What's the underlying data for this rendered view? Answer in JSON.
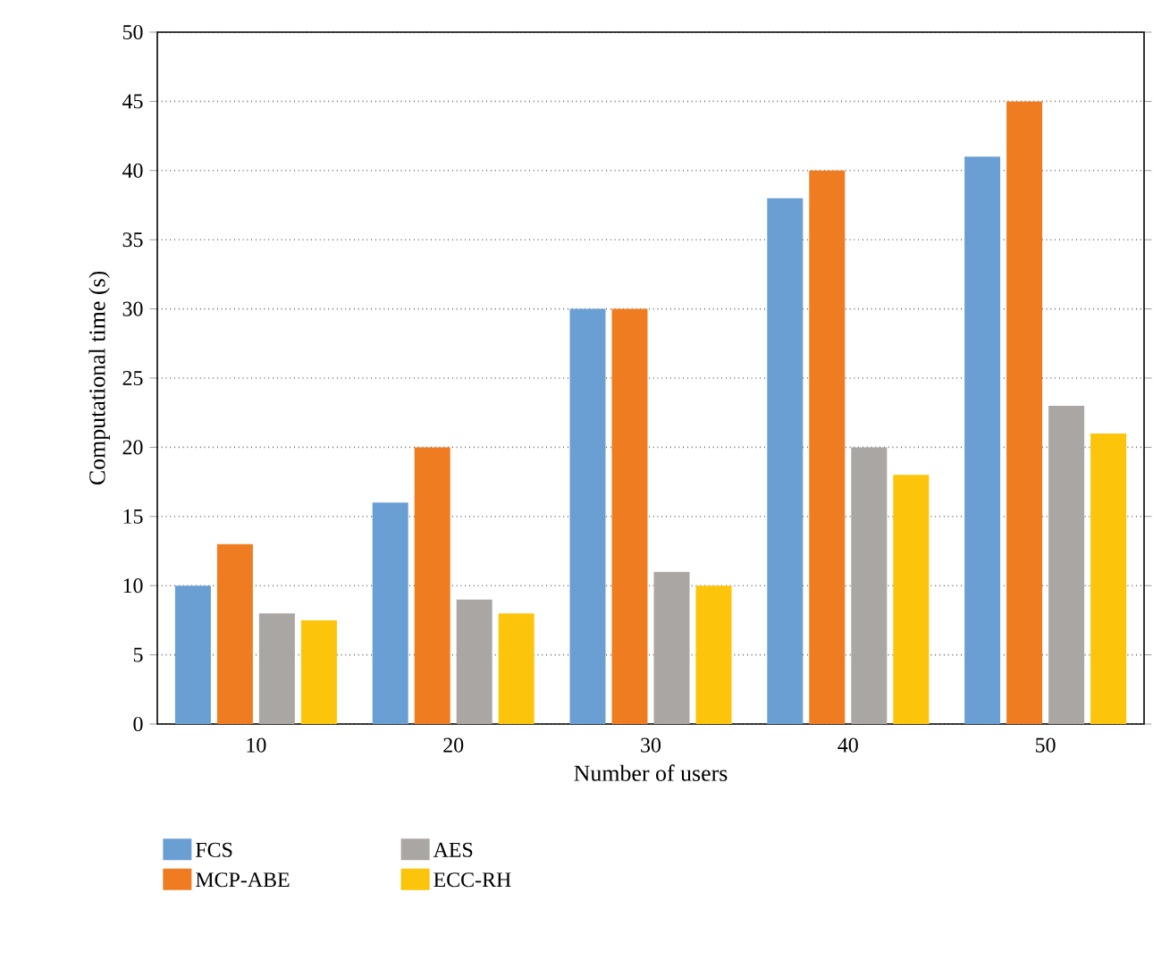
{
  "chart_data": {
    "type": "bar",
    "xlabel": "Number of users",
    "ylabel": "Computational time (s)",
    "categories": [
      "10",
      "20",
      "30",
      "40",
      "50"
    ],
    "series": [
      {
        "name": "FCS",
        "color": "#6a9fd4",
        "values": [
          10,
          16,
          30,
          38,
          41
        ]
      },
      {
        "name": "MCP-ABE",
        "color": "#f07c22",
        "values": [
          13,
          20,
          30,
          40,
          45
        ]
      },
      {
        "name": "AES",
        "color": "#aaa6a3",
        "values": [
          8,
          9,
          11,
          20,
          23
        ]
      },
      {
        "name": "ECC-RH",
        "color": "#fcc40a",
        "values": [
          7.5,
          8,
          10,
          18,
          21
        ]
      }
    ],
    "ylim": [
      0,
      50
    ],
    "yticks": [
      0,
      5,
      10,
      15,
      20,
      25,
      30,
      35,
      40,
      45,
      50
    ],
    "grid": "y",
    "legend": "bottom"
  }
}
